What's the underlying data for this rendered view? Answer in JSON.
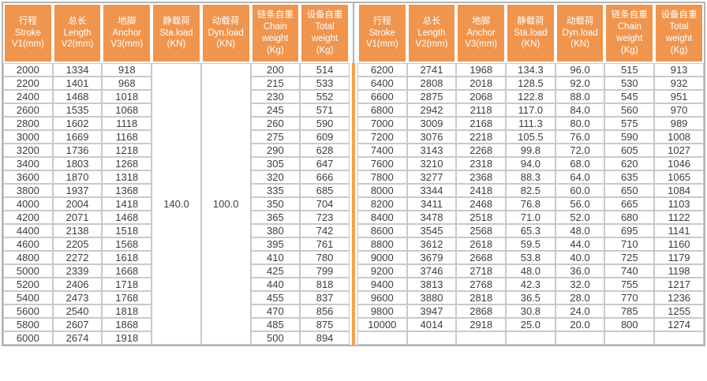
{
  "colors": {
    "header_bg": "#f0954e",
    "divider_strip": "#f6a14f",
    "grid_line": "#c9c9c9",
    "outer_border": "#b3b3b3",
    "header_text": "#ffffff",
    "body_text": "#3d3d3d"
  },
  "chart_data": {
    "type": "table",
    "title": "",
    "column_headers_cn": [
      "行程",
      "总长",
      "地脚",
      "静载荷",
      "动载荷",
      "链条自重",
      "设备自重"
    ],
    "column_headers_en": [
      "Stroke V1(mm)",
      "Length V2(mm)",
      "Anchor V3(mm)",
      "Sta.load (KN)",
      "Dyn.load (KN)",
      "Chain weight (Kg)",
      "Total weight (Kg)"
    ]
  },
  "table": {
    "column_headers": [
      {
        "lines": [
          "行程",
          "Stroke",
          "V1(mm)"
        ]
      },
      {
        "lines": [
          "总长",
          "Length",
          "V2(mm)"
        ]
      },
      {
        "lines": [
          "地脚",
          "Anchor",
          "V3(mm)"
        ]
      },
      {
        "lines": [
          "静载荷",
          "Sta.load",
          "(KN)"
        ]
      },
      {
        "lines": [
          "动载荷",
          "Dyn.load",
          "(KN)"
        ]
      },
      {
        "lines": [
          "链条自重",
          "Chain",
          "weight",
          "(Kg)"
        ]
      },
      {
        "lines": [
          "设备自重",
          "Total",
          "weight",
          "(Kg)"
        ]
      }
    ],
    "left_half": {
      "sta_load_merged": "140.0",
      "dyn_load_merged": "100.0",
      "rows": [
        [
          "2000",
          "1334",
          "918",
          "200",
          "514"
        ],
        [
          "2200",
          "1401",
          "968",
          "215",
          "533"
        ],
        [
          "2400",
          "1468",
          "1018",
          "230",
          "552"
        ],
        [
          "2600",
          "1535",
          "1068",
          "245",
          "571"
        ],
        [
          "2800",
          "1602",
          "1118",
          "260",
          "590"
        ],
        [
          "3000",
          "1669",
          "1168",
          "275",
          "609"
        ],
        [
          "3200",
          "1736",
          "1218",
          "290",
          "628"
        ],
        [
          "3400",
          "1803",
          "1268",
          "305",
          "647"
        ],
        [
          "3600",
          "1870",
          "1318",
          "320",
          "666"
        ],
        [
          "3800",
          "1937",
          "1368",
          "335",
          "685"
        ],
        [
          "4000",
          "2004",
          "1418",
          "350",
          "704"
        ],
        [
          "4200",
          "2071",
          "1468",
          "365",
          "723"
        ],
        [
          "4400",
          "2138",
          "1518",
          "380",
          "742"
        ],
        [
          "4600",
          "2205",
          "1568",
          "395",
          "761"
        ],
        [
          "4800",
          "2272",
          "1618",
          "410",
          "780"
        ],
        [
          "5000",
          "2339",
          "1668",
          "425",
          "799"
        ],
        [
          "5200",
          "2406",
          "1718",
          "440",
          "818"
        ],
        [
          "5400",
          "2473",
          "1768",
          "455",
          "837"
        ],
        [
          "5600",
          "2540",
          "1818",
          "470",
          "856"
        ],
        [
          "5800",
          "2607",
          "1868",
          "485",
          "875"
        ],
        [
          "6000",
          "2674",
          "1918",
          "500",
          "894"
        ]
      ]
    },
    "right_half": {
      "rows": [
        [
          "6200",
          "2741",
          "1968",
          "134.3",
          "96.0",
          "515",
          "913"
        ],
        [
          "6400",
          "2808",
          "2018",
          "128.5",
          "92.0",
          "530",
          "932"
        ],
        [
          "6600",
          "2875",
          "2068",
          "122.8",
          "88.0",
          "545",
          "951"
        ],
        [
          "6800",
          "2942",
          "2118",
          "117.0",
          "84.0",
          "560",
          "970"
        ],
        [
          "7000",
          "3009",
          "2168",
          "111.3",
          "80.0",
          "575",
          "989"
        ],
        [
          "7200",
          "3076",
          "2218",
          "105.5",
          "76.0",
          "590",
          "1008"
        ],
        [
          "7400",
          "3143",
          "2268",
          "99.8",
          "72.0",
          "605",
          "1027"
        ],
        [
          "7600",
          "3210",
          "2318",
          "94.0",
          "68.0",
          "620",
          "1046"
        ],
        [
          "7800",
          "3277",
          "2368",
          "88.3",
          "64.0",
          "635",
          "1065"
        ],
        [
          "8000",
          "3344",
          "2418",
          "82.5",
          "60.0",
          "650",
          "1084"
        ],
        [
          "8200",
          "3411",
          "2468",
          "76.8",
          "56.0",
          "665",
          "1103"
        ],
        [
          "8400",
          "3478",
          "2518",
          "71.0",
          "52.0",
          "680",
          "1122"
        ],
        [
          "8600",
          "3545",
          "2568",
          "65.3",
          "48.0",
          "695",
          "1141"
        ],
        [
          "8800",
          "3612",
          "2618",
          "59.5",
          "44.0",
          "710",
          "1160"
        ],
        [
          "9000",
          "3679",
          "2668",
          "53.8",
          "40.0",
          "725",
          "1179"
        ],
        [
          "9200",
          "3746",
          "2718",
          "48.0",
          "36.0",
          "740",
          "1198"
        ],
        [
          "9400",
          "3813",
          "2768",
          "42.3",
          "32.0",
          "755",
          "1217"
        ],
        [
          "9600",
          "3880",
          "2818",
          "36.5",
          "28.0",
          "770",
          "1236"
        ],
        [
          "9800",
          "3947",
          "2868",
          "30.8",
          "24.0",
          "785",
          "1255"
        ],
        [
          "10000",
          "4014",
          "2918",
          "25.0",
          "20.0",
          "800",
          "1274"
        ],
        [
          "",
          "",
          "",
          "",
          "",
          "",
          ""
        ]
      ]
    }
  }
}
